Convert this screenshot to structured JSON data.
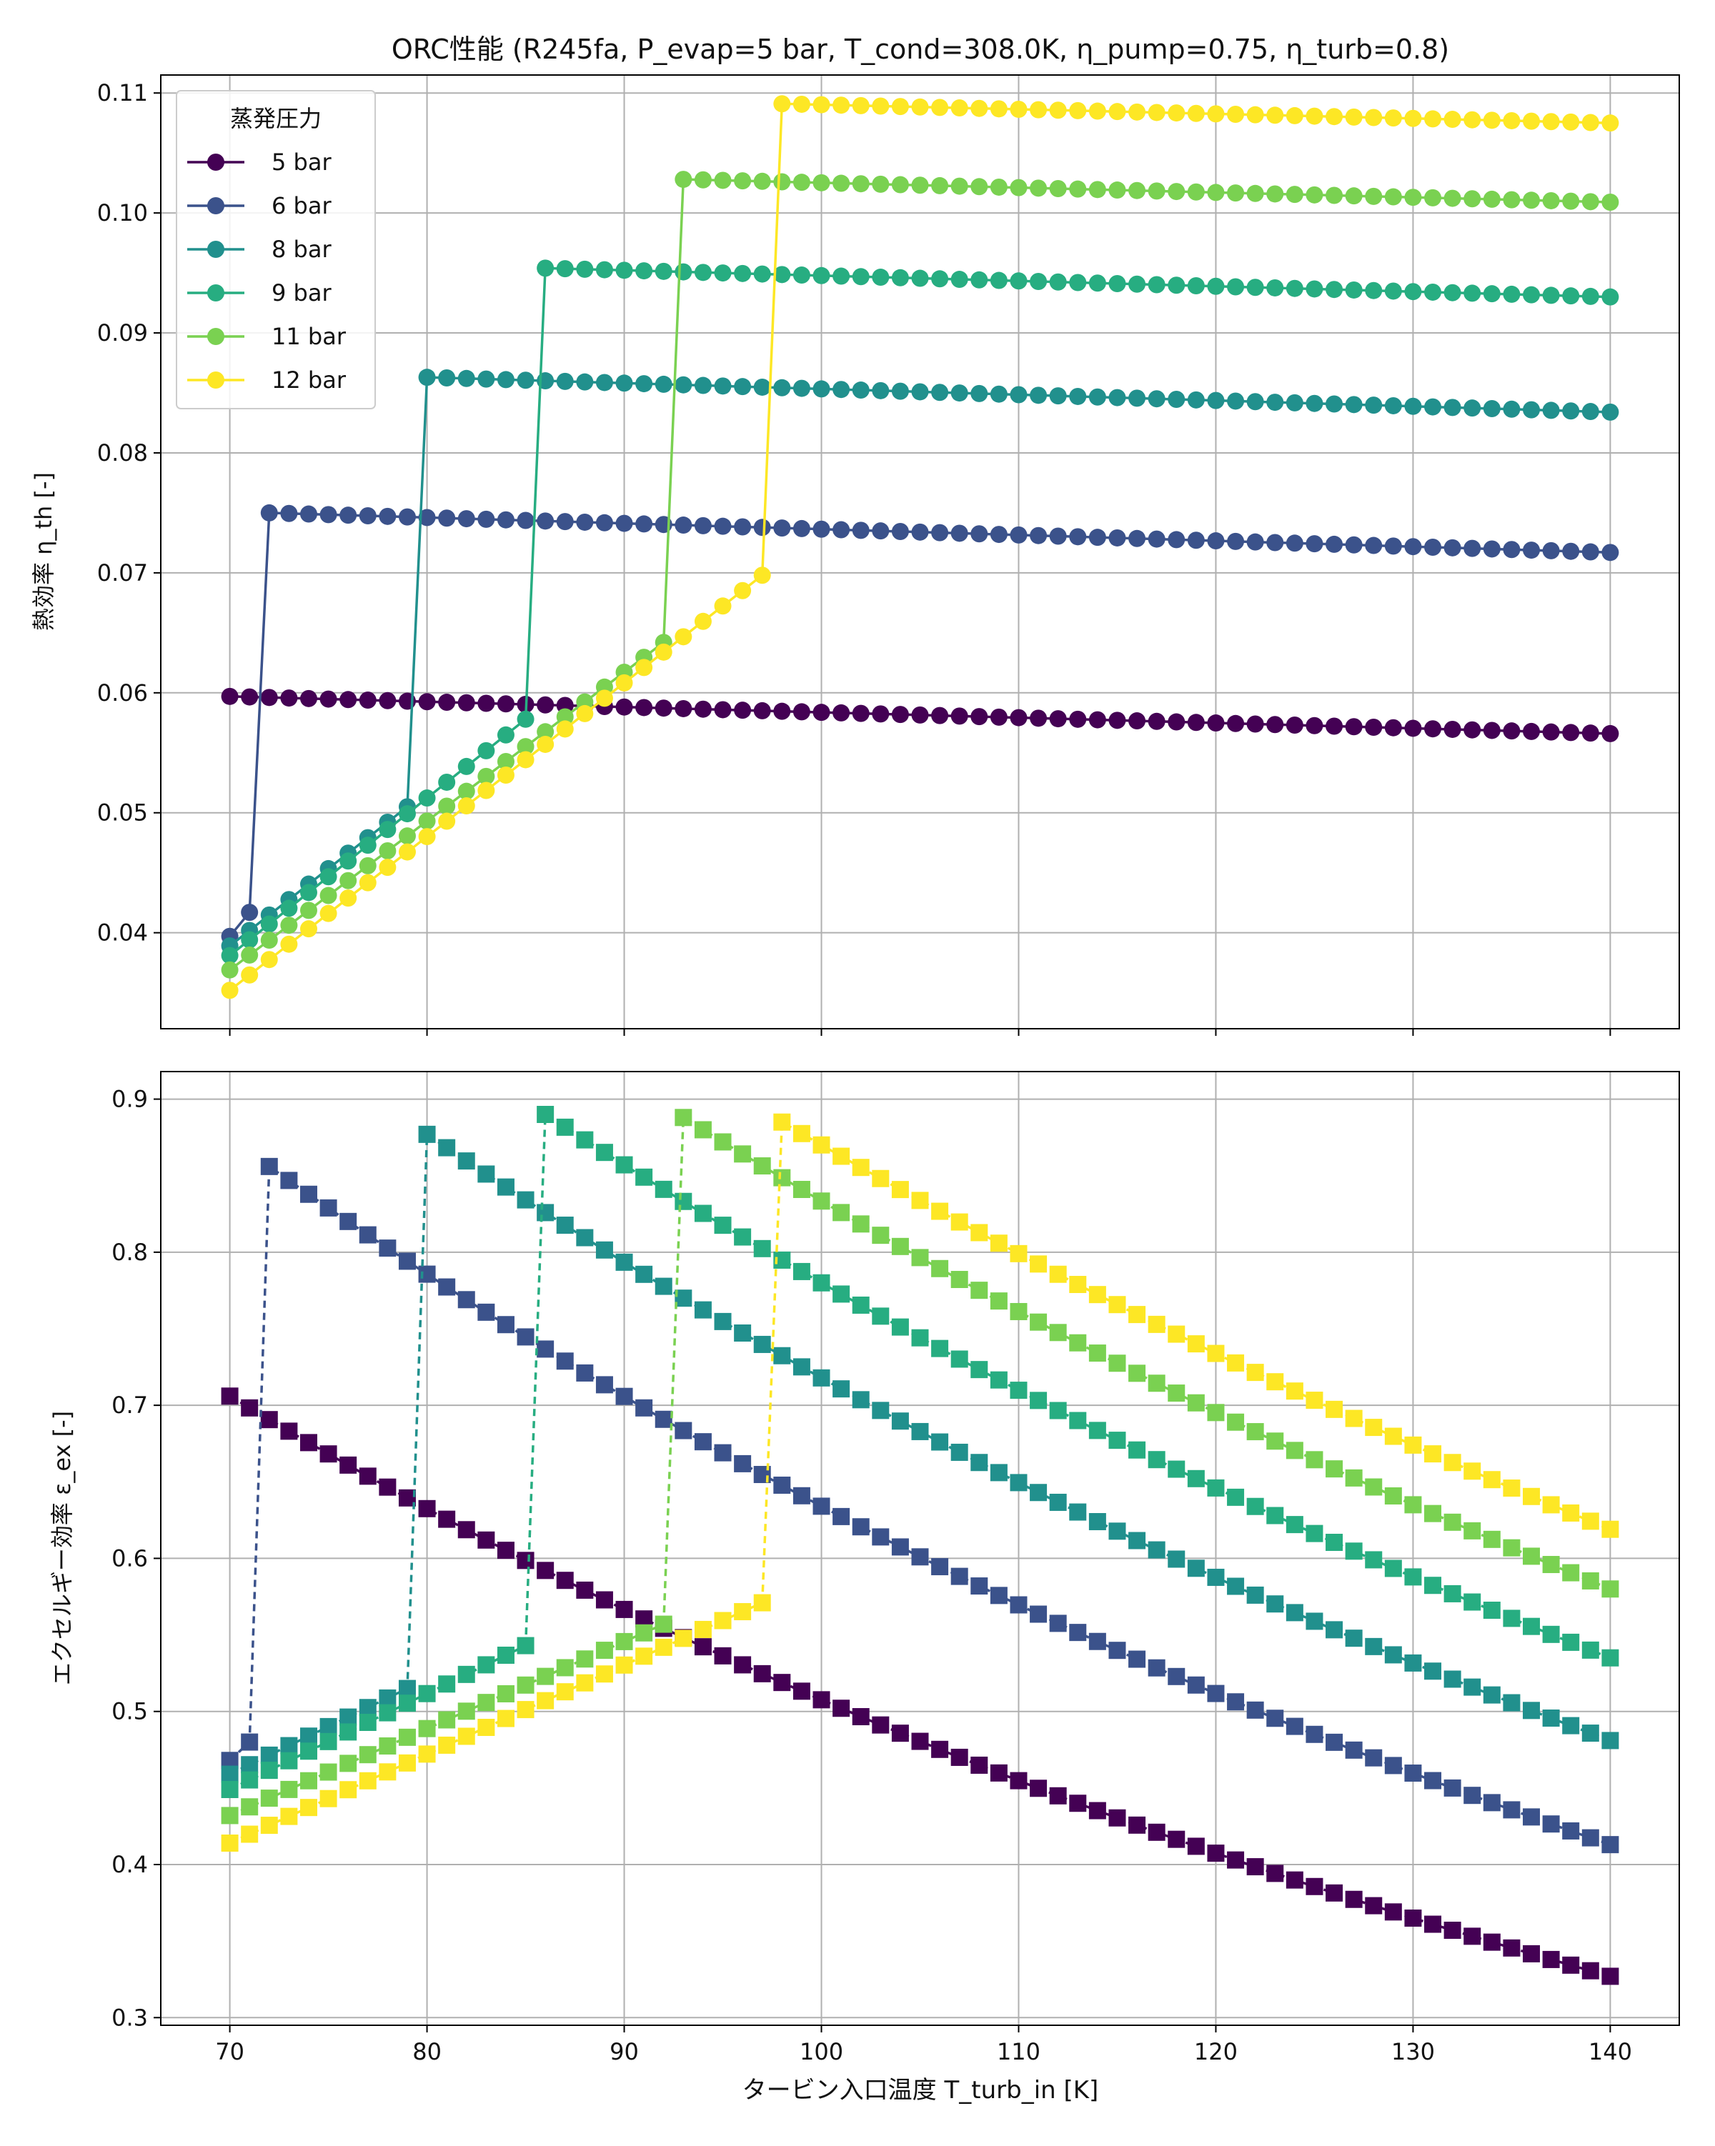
{
  "chart_data": [
    {
      "type": "line",
      "title": "ORC性能 (R245fa, P_evap=5 bar, T_cond=308.0K, η_pump=0.75, η_turb=0.8)",
      "xlabel": "",
      "ylabel": "熱効率 η_th [-]",
      "xlim": [
        66.5,
        143.5
      ],
      "ylim": [
        0.032,
        0.1115
      ],
      "yticks": [
        0.04,
        0.05,
        0.06,
        0.07,
        0.08,
        0.09,
        0.1,
        0.11
      ],
      "yticklabels": [
        "0.04",
        "0.05",
        "0.06",
        "0.07",
        "0.08",
        "0.09",
        "0.10",
        "0.11"
      ],
      "xticks": [
        70,
        80,
        90,
        100,
        110,
        120,
        130,
        140
      ],
      "xticklabels": [],
      "grid": true,
      "marker": "circle",
      "line_style": "solid",
      "x_range": {
        "start": 70,
        "end": 140,
        "step": 1
      },
      "legend": {
        "title": "蒸発圧力",
        "position": "upper-left"
      },
      "series": [
        {
          "name": "5 bar",
          "color": "#440154",
          "jump_x": null,
          "base_start": 0.0597,
          "base_end": 0.0597,
          "post_start": 0.0597,
          "post_end": 0.0566
        },
        {
          "name": "6 bar",
          "color": "#3b528b",
          "jump_x": 72,
          "base_start": 0.0397,
          "base_end": 0.0417,
          "post_start": 0.075,
          "post_end": 0.0717
        },
        {
          "name": "8 bar",
          "color": "#21908d",
          "jump_x": 80,
          "base_start": 0.0389,
          "base_end": 0.0505,
          "post_start": 0.0863,
          "post_end": 0.0834
        },
        {
          "name": "9 bar",
          "color": "#27ad81",
          "jump_x": 86,
          "base_start": 0.0381,
          "base_end": 0.0578,
          "post_start": 0.0954,
          "post_end": 0.093
        },
        {
          "name": "11 bar",
          "color": "#7ad151",
          "jump_x": 93,
          "base_start": 0.0369,
          "base_end": 0.0642,
          "post_start": 0.1028,
          "post_end": 0.1009
        },
        {
          "name": "12 bar",
          "color": "#fde725",
          "jump_x": 98,
          "base_start": 0.0352,
          "base_end": 0.0698,
          "post_start": 0.1091,
          "post_end": 0.1075
        }
      ]
    },
    {
      "type": "line",
      "title": "",
      "xlabel": "タービン入口温度 T_turb_in [K]",
      "ylabel": "エクセルギー効率 ε_ex [-]",
      "xlim": [
        66.5,
        143.5
      ],
      "ylim": [
        0.295,
        0.918
      ],
      "yticks": [
        0.3,
        0.4,
        0.5,
        0.6,
        0.7,
        0.8,
        0.9
      ],
      "yticklabels": [
        "0.3",
        "0.4",
        "0.5",
        "0.6",
        "0.7",
        "0.8",
        "0.9"
      ],
      "xticks": [
        70,
        80,
        90,
        100,
        110,
        120,
        130,
        140
      ],
      "xticklabels": [
        "70",
        "80",
        "90",
        "100",
        "110",
        "120",
        "130",
        "140"
      ],
      "grid": true,
      "marker": "square",
      "line_style": "dashed",
      "x_range": {
        "start": 70,
        "end": 140,
        "step": 1
      },
      "series": [
        {
          "name": "5 bar",
          "color": "#440154",
          "jump_x": null,
          "base_start": 0.706,
          "base_end": 0.706,
          "post_start": 0.706,
          "post_end": 0.327
        },
        {
          "name": "6 bar",
          "color": "#3b528b",
          "jump_x": 72,
          "base_start": 0.468,
          "base_end": 0.48,
          "post_start": 0.856,
          "post_end": 0.413
        },
        {
          "name": "8 bar",
          "color": "#21908d",
          "jump_x": 80,
          "base_start": 0.459,
          "base_end": 0.515,
          "post_start": 0.877,
          "post_end": 0.481
        },
        {
          "name": "9 bar",
          "color": "#27ad81",
          "jump_x": 86,
          "base_start": 0.449,
          "base_end": 0.543,
          "post_start": 0.89,
          "post_end": 0.535
        },
        {
          "name": "11 bar",
          "color": "#7ad151",
          "jump_x": 93,
          "base_start": 0.432,
          "base_end": 0.557,
          "post_start": 0.888,
          "post_end": 0.58
        },
        {
          "name": "12 bar",
          "color": "#fde725",
          "jump_x": 98,
          "base_start": 0.414,
          "base_end": 0.571,
          "post_start": 0.885,
          "post_end": 0.619
        }
      ]
    }
  ]
}
